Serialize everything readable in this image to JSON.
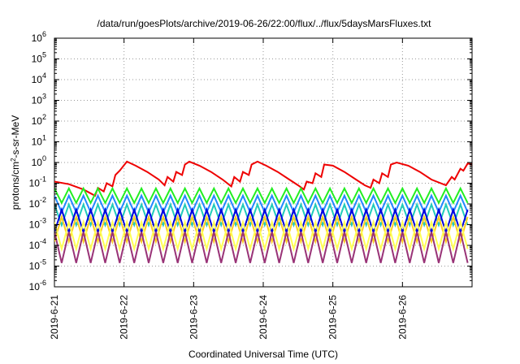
{
  "chart_data": {
    "type": "line",
    "title": "/data/run/goesPlots/archive/2019-06-26/22:00/flux/../flux/5daysMarsFluxes.txt",
    "xlabel": "Coordinated Universal Time (UTC)",
    "ylabel": "protons/cm2-s-sr-MeV",
    "ylabel_parts": {
      "pre": "protons/cm",
      "sup": "2",
      "post": "-s-sr-MeV"
    },
    "yscale": "log",
    "xlim": [
      "2019-06-21",
      "2019-06-27"
    ],
    "ylim": [
      1e-06,
      1000000.0
    ],
    "grid": true,
    "x_ticks": [
      "2019-6-21",
      "2019-6-22",
      "2019-6-23",
      "2019-6-24",
      "2019-6-25",
      "2019-6-26"
    ],
    "y_ticks": [
      {
        "base": "10",
        "exp": "-6"
      },
      {
        "base": "10",
        "exp": "-5"
      },
      {
        "base": "10",
        "exp": "-4"
      },
      {
        "base": "10",
        "exp": "-3"
      },
      {
        "base": "10",
        "exp": "-2"
      },
      {
        "base": "10",
        "exp": "-1"
      },
      {
        "base": "10",
        "exp": "0"
      },
      {
        "base": "10",
        "exp": "1"
      },
      {
        "base": "10",
        "exp": "2"
      },
      {
        "base": "10",
        "exp": "3"
      },
      {
        "base": "10",
        "exp": "4"
      },
      {
        "base": "10",
        "exp": "5"
      },
      {
        "base": "10",
        "exp": "6"
      }
    ],
    "series": [
      {
        "color": "#ee0000",
        "x": [
          "2019-06-21 00:00",
          "2019-06-21 05:00",
          "2019-06-21 10:00",
          "2019-06-21 14:00",
          "2019-06-21 15:00",
          "2019-06-21 17:00",
          "2019-06-21 18:00",
          "2019-06-21 20:00",
          "2019-06-21 21:00",
          "2019-06-21 22:30",
          "2019-06-22 01:00",
          "2019-06-22 04:00",
          "2019-06-22 08:00",
          "2019-06-22 12:00",
          "2019-06-22 14:00",
          "2019-06-22 15:00",
          "2019-06-22 17:00",
          "2019-06-22 18:00",
          "2019-06-22 20:00",
          "2019-06-22 21:00",
          "2019-06-22 22:30",
          "2019-06-23 02:00",
          "2019-06-23 06:00",
          "2019-06-23 10:00",
          "2019-06-23 13:00",
          "2019-06-23 14:00",
          "2019-06-23 16:00",
          "2019-06-23 17:00",
          "2019-06-23 19:00",
          "2019-06-23 20:00",
          "2019-06-23 22:00",
          "2019-06-24 01:00",
          "2019-06-24 05:00",
          "2019-06-24 09:00",
          "2019-06-24 12:00",
          "2019-06-24 14:00",
          "2019-06-24 15:00",
          "2019-06-24 17:00",
          "2019-06-24 18:00",
          "2019-06-24 20:00",
          "2019-06-24 21:00",
          "2019-06-25 00:00",
          "2019-06-25 04:00",
          "2019-06-25 08:00",
          "2019-06-25 11:00",
          "2019-06-25 13:00",
          "2019-06-25 14:00",
          "2019-06-25 16:00",
          "2019-06-25 17:00",
          "2019-06-25 19:00",
          "2019-06-25 20:00",
          "2019-06-25 22:00",
          "2019-06-26 02:00",
          "2019-06-26 06:00",
          "2019-06-26 10:00",
          "2019-06-26 15:00",
          "2019-06-26 17:00",
          "2019-06-26 18:00",
          "2019-06-26 20:00",
          "2019-06-26 21:00",
          "2019-06-26 22:30",
          "2019-06-27 00:00"
        ],
        "y": [
          0.12,
          0.09,
          0.05,
          0.025,
          0.06,
          0.04,
          0.1,
          0.07,
          0.25,
          0.4,
          1.1,
          0.7,
          0.35,
          0.15,
          0.08,
          0.2,
          0.12,
          0.35,
          0.25,
          0.8,
          1.1,
          0.7,
          0.35,
          0.15,
          0.07,
          0.2,
          0.12,
          0.35,
          0.25,
          0.8,
          1.1,
          0.7,
          0.35,
          0.15,
          0.08,
          0.05,
          0.12,
          0.1,
          0.3,
          0.2,
          0.8,
          0.7,
          0.35,
          0.15,
          0.08,
          0.06,
          0.15,
          0.1,
          0.3,
          0.2,
          0.8,
          1.0,
          0.7,
          0.35,
          0.15,
          0.08,
          0.2,
          0.15,
          0.5,
          0.4,
          0.9,
          0.8
        ]
      },
      {
        "color": "#22ee22",
        "x_start": "2019-06-21 00:00",
        "step_hours": 2.5,
        "base": 0.025,
        "amp": 0.7,
        "phase": 0.0
      },
      {
        "color": "#2288ff",
        "x_start": "2019-06-21 00:00",
        "step_hours": 2.5,
        "base": 0.01,
        "amp": 0.8,
        "phase": 0.4
      },
      {
        "color": "#22ccbb",
        "x_start": "2019-06-21 00:00",
        "step_hours": 2.5,
        "base": 0.003,
        "amp": 1.0,
        "phase": 0.8
      },
      {
        "color": "#0000dd",
        "x_start": "2019-06-21 00:00",
        "step_hours": 2.5,
        "base": 0.0015,
        "amp": 1.1,
        "phase": 1.2
      },
      {
        "color": "#ffcc22",
        "x_start": "2019-06-21 00:00",
        "step_hours": 2.5,
        "base": 0.0006,
        "amp": 1.2,
        "phase": 1.6
      },
      {
        "color": "#ffff55",
        "x_start": "2019-06-21 00:00",
        "step_hours": 2.5,
        "base": 0.0003,
        "amp": 1.3,
        "phase": 2.0
      },
      {
        "color": "#993377",
        "x_start": "2019-06-21 00:00",
        "step_hours": 2.5,
        "base": 8e-05,
        "amp": 1.5,
        "phase": 2.4
      }
    ]
  }
}
